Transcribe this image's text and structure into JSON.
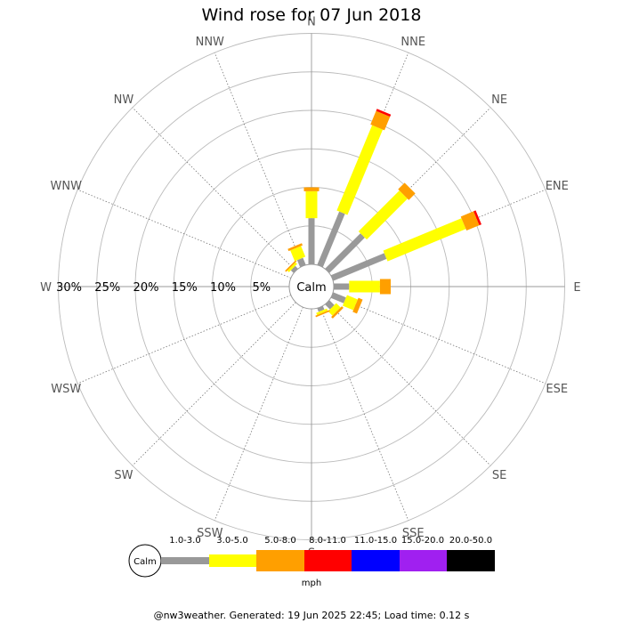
{
  "chart_data": {
    "type": "wind-rose",
    "title": "Wind rose for 07 Jun 2018",
    "directions": [
      "N",
      "NNE",
      "NE",
      "ENE",
      "E",
      "ESE",
      "SE",
      "SSE",
      "S",
      "SSW",
      "SW",
      "WSW",
      "W",
      "WNW",
      "NW",
      "NNW"
    ],
    "ring_labels": [
      "5%",
      "10%",
      "15%",
      "20%",
      "25%",
      "30%"
    ],
    "rings_percent": [
      5,
      10,
      15,
      20,
      25,
      30
    ],
    "center_label": "Calm",
    "speed_bins": [
      {
        "label": "1.0-3.0",
        "color": "#999999"
      },
      {
        "label": "3.0-5.0",
        "color": "#ffff00"
      },
      {
        "label": "5.0-8.0",
        "color": "#ff9f00"
      },
      {
        "label": "8.0-11.0",
        "color": "#ff0000"
      },
      {
        "label": "11.0-15.0",
        "color": "#0000ff"
      },
      {
        "label": "15.0-20.0",
        "color": "#a020f0"
      },
      {
        "label": "20.0-50.0",
        "color": "#000000"
      }
    ],
    "units": "mph",
    "petals": [
      {
        "direction": "N",
        "segments": [
          6.0,
          3.5,
          0.5,
          0,
          0,
          0,
          0
        ]
      },
      {
        "direction": "NNE",
        "segments": [
          7.5,
          12.0,
          1.9,
          0.3,
          0,
          0,
          0
        ]
      },
      {
        "direction": "NE",
        "segments": [
          6.5,
          7.5,
          1.2,
          0,
          0,
          0,
          0
        ]
      },
      {
        "direction": "ENE",
        "segments": [
          7.5,
          11.0,
          1.8,
          0.3,
          0,
          0,
          0
        ]
      },
      {
        "direction": "E",
        "segments": [
          2.0,
          4.0,
          1.4,
          0,
          0,
          0,
          0
        ]
      },
      {
        "direction": "ESE",
        "segments": [
          1.8,
          1.5,
          0.6,
          0,
          0,
          0,
          0
        ]
      },
      {
        "direction": "SE",
        "segments": [
          0.9,
          0.8,
          0.3,
          0,
          0,
          0,
          0
        ]
      },
      {
        "direction": "SSE",
        "segments": [
          0.5,
          0.3,
          0.2,
          0,
          0,
          0,
          0
        ]
      },
      {
        "direction": "NW",
        "segments": [
          0.5,
          0.3,
          0.2,
          0,
          0,
          0,
          0
        ]
      },
      {
        "direction": "NNW",
        "segments": [
          1.0,
          1.5,
          0.3,
          0,
          0,
          0,
          0
        ]
      }
    ]
  },
  "footer": "@nw3weather. Generated: 19 Jun 2025 22:45; Load time: 0.12 s"
}
